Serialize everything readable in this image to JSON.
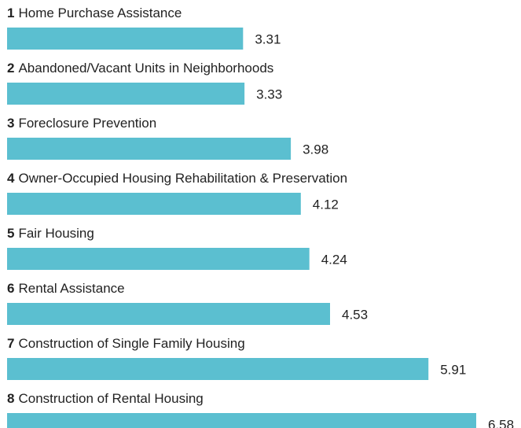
{
  "chart_data": {
    "type": "bar",
    "orientation": "horizontal",
    "ranks": [
      1,
      2,
      3,
      4,
      5,
      6,
      7,
      8
    ],
    "categories": [
      "Home Purchase Assistance",
      "Abandoned/Vacant Units in Neighborhoods",
      "Foreclosure Prevention",
      "Owner-Occupied Housing Rehabilitation & Preservation",
      "Fair Housing",
      "Rental Assistance",
      "Construction of Single Family Housing",
      "Construction of Rental Housing"
    ],
    "values": [
      3.31,
      3.33,
      3.98,
      4.12,
      4.24,
      4.53,
      5.91,
      6.58
    ],
    "color": "#5bbfd0"
  }
}
